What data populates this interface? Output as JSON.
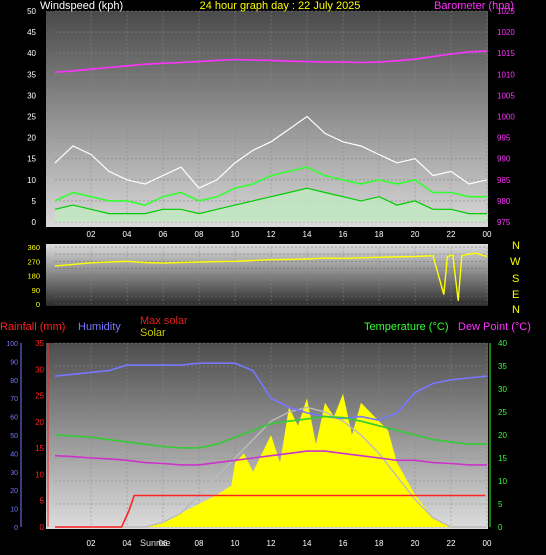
{
  "colors": {
    "background": "#000000",
    "white": "#ffffff",
    "yellow": "#ffff00",
    "magenta": "#ff33ff",
    "green": "#00cc00",
    "lime": "#33ff33",
    "gust_fill": "#bfe8bf",
    "humidity": "#7777ff",
    "rainfall": "#ff2222",
    "maxsolar": "#bbbbbb",
    "solar": "#ffff00",
    "temperature": "#33cc33",
    "dewpoint": "#cc33cc",
    "axis_text": "#ffffff"
  },
  "top_header": {
    "left": "Windspeed (kph)",
    "center": "24 hour graph day : 22 July 2025",
    "right": "Barometer (hpa)"
  },
  "bottom_header": {
    "rainfall": "Rainfall (mm)",
    "humidity": "Humidity",
    "maxsolar": "Max solar",
    "solar": "Solar",
    "temperature": "Temperature (°C)",
    "dewpoint": "Dew Point (°C)"
  },
  "x_ticks": [
    "02",
    "04",
    "06",
    "08",
    "10",
    "12",
    "14",
    "16",
    "18",
    "20",
    "22",
    "00"
  ],
  "bottom_markers": {
    "sunrise": "Sunrise"
  },
  "compass": [
    "N",
    "W",
    "S",
    "E",
    "N"
  ],
  "chart_data": [
    {
      "type": "line",
      "panel": "wind_and_pressure",
      "x_range_hours": [
        0,
        24
      ],
      "left_axis": {
        "label": "Windspeed (kph)",
        "ylim": [
          0,
          50
        ],
        "ticks": [
          0,
          5,
          10,
          15,
          20,
          25,
          30,
          35,
          40,
          45,
          50
        ]
      },
      "right_axis": {
        "label": "Barometer (hpa)",
        "ylim": [
          975,
          1025
        ],
        "ticks": [
          975,
          980,
          985,
          990,
          995,
          1000,
          1005,
          1010,
          1015,
          1020,
          1025
        ]
      },
      "series": [
        {
          "name": "Barometer (hpa)",
          "axis": "right",
          "x": [
            0,
            1,
            2,
            3,
            4,
            5,
            6,
            7,
            8,
            9,
            10,
            11,
            12,
            13,
            14,
            15,
            16,
            17,
            18,
            19,
            20,
            21,
            22,
            23,
            24
          ],
          "y": [
            1010.5,
            1010.8,
            1011.2,
            1011.6,
            1012.0,
            1012.4,
            1012.6,
            1012.8,
            1013.0,
            1013.3,
            1013.5,
            1013.4,
            1013.3,
            1013.1,
            1013.0,
            1012.9,
            1012.9,
            1012.8,
            1012.9,
            1013.2,
            1013.6,
            1014.2,
            1014.8,
            1015.3,
            1015.5
          ]
        },
        {
          "name": "wind_gust",
          "axis": "left",
          "x": [
            0,
            1,
            2,
            3,
            4,
            5,
            6,
            7,
            8,
            9,
            10,
            11,
            12,
            13,
            14,
            15,
            16,
            17,
            18,
            19,
            20,
            21,
            22,
            23,
            24
          ],
          "y": [
            14,
            18,
            16,
            12,
            10,
            9,
            11,
            13,
            8,
            10,
            14,
            17,
            19,
            22,
            25,
            21,
            19,
            18,
            16,
            14,
            15,
            11,
            12,
            9,
            10
          ]
        },
        {
          "name": "wind_average",
          "axis": "left",
          "x": [
            0,
            1,
            2,
            3,
            4,
            5,
            6,
            7,
            8,
            9,
            10,
            11,
            12,
            13,
            14,
            15,
            16,
            17,
            18,
            19,
            20,
            21,
            22,
            23,
            24
          ],
          "y": [
            3,
            4,
            3,
            2,
            2,
            2,
            3,
            3,
            2,
            3,
            4,
            5,
            6,
            7,
            8,
            7,
            6,
            5,
            6,
            4,
            5,
            3,
            3,
            2,
            2
          ]
        },
        {
          "name": "wind_average_10min",
          "axis": "left",
          "x": [
            0,
            1,
            2,
            3,
            4,
            5,
            6,
            7,
            8,
            9,
            10,
            11,
            12,
            13,
            14,
            15,
            16,
            17,
            18,
            19,
            20,
            21,
            22,
            23,
            24
          ],
          "y": [
            5,
            7,
            6,
            5,
            5,
            4,
            6,
            7,
            5,
            6,
            8,
            9,
            11,
            12,
            13,
            11,
            10,
            9,
            10,
            9,
            10,
            7,
            7,
            6,
            6
          ]
        }
      ]
    },
    {
      "type": "line",
      "panel": "wind_direction",
      "x_range_hours": [
        0,
        24
      ],
      "axis": {
        "ylim": [
          0,
          360
        ],
        "ticks": [
          0,
          45,
          90,
          135,
          180,
          225,
          270,
          315,
          360
        ]
      },
      "series": [
        {
          "name": "wind_direction",
          "x": [
            0,
            1,
            2,
            3,
            4,
            5,
            6,
            7,
            8,
            9,
            10,
            11,
            12,
            13,
            14,
            15,
            16,
            17,
            18,
            19,
            20,
            21,
            21.6,
            21.8,
            22.1,
            22.4,
            22.6,
            23,
            23.4,
            24
          ],
          "y": [
            240,
            250,
            260,
            265,
            270,
            262,
            258,
            262,
            265,
            268,
            270,
            275,
            280,
            282,
            285,
            290,
            288,
            292,
            295,
            298,
            300,
            305,
            60,
            300,
            310,
            20,
            305,
            315,
            320,
            300
          ]
        }
      ]
    },
    {
      "type": "line",
      "panel": "temperature_humidity_solar_rain",
      "x_range_hours": [
        0,
        24
      ],
      "axes": {
        "humidity": {
          "ylim": [
            0,
            100
          ],
          "ticks": [
            0,
            10,
            20,
            30,
            40,
            50,
            60,
            70,
            80,
            90,
            100
          ]
        },
        "rainfall": {
          "ylim": [
            0,
            35
          ],
          "ticks": [
            0,
            5,
            10,
            15,
            20,
            25,
            30,
            35
          ]
        },
        "temperature": {
          "ylim": [
            0,
            40
          ],
          "ticks": [
            0,
            5,
            10,
            15,
            20,
            25,
            30,
            35,
            40
          ]
        }
      },
      "series": [
        {
          "name": "Humidity",
          "axis": "humidity",
          "x": [
            0,
            1,
            2,
            3,
            4,
            5,
            6,
            7,
            8,
            9,
            10,
            11,
            12,
            13,
            14,
            15,
            16,
            17,
            18,
            19,
            20,
            21,
            22,
            23,
            24
          ],
          "y": [
            82,
            83,
            84,
            85,
            88,
            88,
            88,
            88,
            89,
            89,
            89,
            85,
            70,
            65,
            62,
            60,
            59,
            60,
            58,
            62,
            73,
            78,
            80,
            81,
            82
          ]
        },
        {
          "name": "Rainfall (mm)",
          "axis": "rainfall",
          "x": [
            0,
            3.7,
            4.1,
            4.4,
            5,
            10,
            15,
            20,
            23.9
          ],
          "y": [
            0,
            0,
            3,
            6,
            6,
            6,
            6,
            6,
            6
          ]
        },
        {
          "name": "Max solar",
          "axis": "temperature",
          "x": [
            0,
            5,
            6,
            7,
            8,
            9,
            10,
            11,
            12,
            13,
            14,
            15,
            16,
            17,
            18,
            19,
            20,
            21,
            22,
            24
          ],
          "y": [
            0,
            0,
            1,
            3,
            7,
            11,
            15,
            19,
            23,
            25,
            26,
            25,
            23,
            20,
            16,
            11,
            6,
            2,
            0,
            0
          ]
        },
        {
          "name": "Solar",
          "axis": "temperature",
          "x": [
            5,
            6,
            7,
            8,
            9,
            9.8,
            10,
            10.5,
            11,
            12,
            12.5,
            13,
            13.5,
            14,
            14.5,
            15,
            15.5,
            16,
            16.5,
            17,
            17.5,
            18,
            18.5,
            19,
            20,
            21,
            22
          ],
          "y": [
            0,
            1,
            3,
            5,
            7,
            9,
            14,
            16,
            12,
            20,
            14,
            26,
            22,
            28,
            18,
            27,
            24,
            29,
            20,
            27,
            25,
            23,
            21,
            14,
            7,
            2,
            0
          ]
        },
        {
          "name": "Temperature (°C)",
          "axis": "temperature",
          "x": [
            0,
            1,
            2,
            3,
            4,
            5,
            6,
            7,
            8,
            9,
            10,
            11,
            12,
            13,
            14,
            15,
            16,
            17,
            18,
            19,
            20,
            21,
            22,
            23,
            24
          ],
          "y": [
            20,
            19.8,
            19.5,
            19.0,
            18.5,
            18.0,
            17.5,
            17.2,
            17.2,
            18.0,
            19.5,
            21.0,
            22.5,
            23.0,
            23.5,
            24.0,
            23.8,
            23.0,
            22.0,
            21.0,
            20.0,
            19.0,
            18.5,
            18.0,
            18.0
          ]
        },
        {
          "name": "Dew Point (°C)",
          "axis": "temperature",
          "x": [
            0,
            1,
            2,
            3,
            4,
            5,
            6,
            7,
            8,
            9,
            10,
            11,
            12,
            13,
            14,
            15,
            16,
            17,
            18,
            19,
            20,
            21,
            22,
            23,
            24
          ],
          "y": [
            15.5,
            15.3,
            15.0,
            14.8,
            14.5,
            14.0,
            13.8,
            13.5,
            13.5,
            14.0,
            14.5,
            15.0,
            15.5,
            16.0,
            16.5,
            16.5,
            16.0,
            15.5,
            15.0,
            14.5,
            14.5,
            14.0,
            13.8,
            13.5,
            13.5
          ]
        }
      ]
    }
  ]
}
